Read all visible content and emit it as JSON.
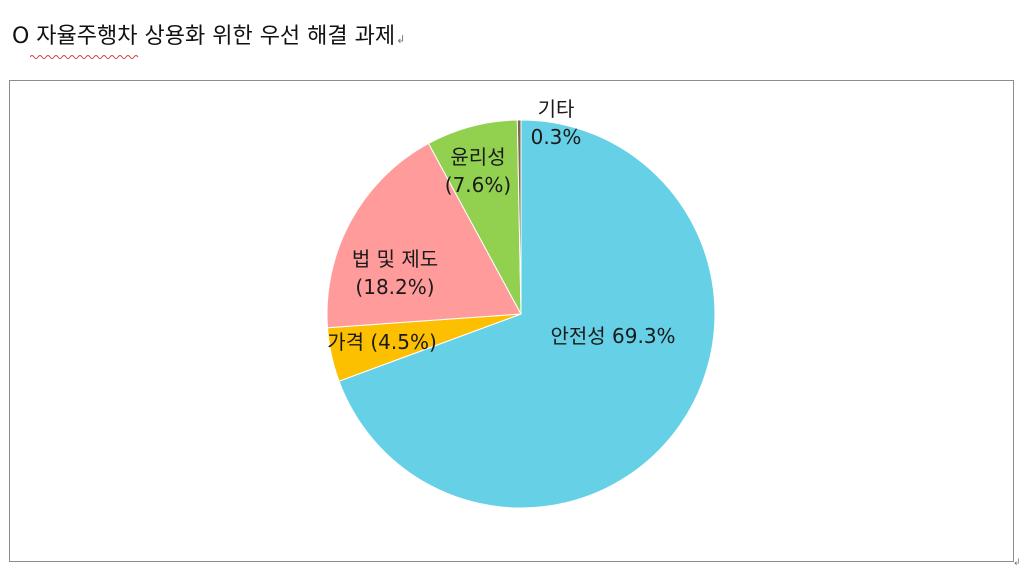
{
  "title": {
    "text": "O 자율주행차 상용화 위한 우선 해결 과제",
    "mark": "↲"
  },
  "corner_mark": "↲",
  "chart_data": {
    "type": "pie",
    "title": "",
    "slices": [
      {
        "category": "안전성",
        "value": 69.3,
        "label": "안전성 69.3%",
        "color": "#66D1E6"
      },
      {
        "category": "가격",
        "value": 4.5,
        "label": "가격 (4.5%)",
        "color": "#FDC000"
      },
      {
        "category": "법 및 제도",
        "value": 18.2,
        "label": "법 및 제도\n(18.2%)",
        "color": "#FF9B9B"
      },
      {
        "category": "윤리성",
        "value": 7.6,
        "label": "윤리성\n(7.6%)",
        "color": "#92D050"
      },
      {
        "category": "기타",
        "value": 0.3,
        "label": "기타\n0.3%",
        "color": "#7A6A46"
      }
    ],
    "start": "12 o'clock",
    "direction": "clockwise",
    "legend": "none"
  }
}
